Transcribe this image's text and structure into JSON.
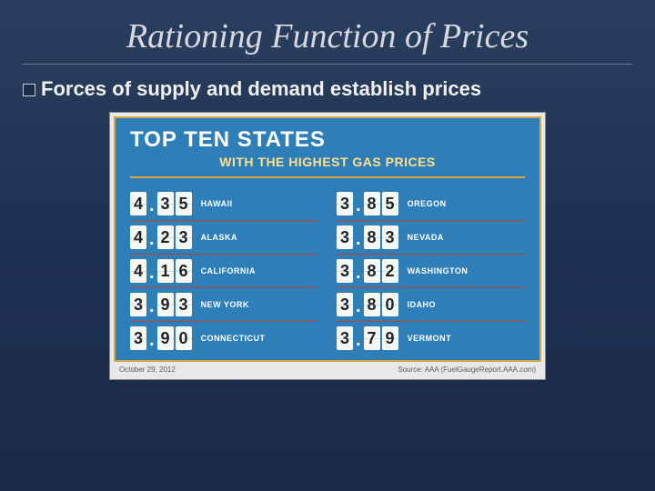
{
  "slide": {
    "title": "Rationing Function of Prices",
    "bullet_text": "Forces of supply and demand establish prices"
  },
  "infographic": {
    "title": "TOP TEN STATES",
    "subtitle": "WITH THE HIGHEST GAS PRICES",
    "title_color": "#ffffff",
    "subtitle_color": "#ffe08a",
    "panel_bg": "#2e7fb8",
    "panel_border": "#d6a843",
    "row_divider_color": "#c04030",
    "digit_bg": "#f7f7f2",
    "digit_text": "#1a2530",
    "left": [
      {
        "price": "4.35",
        "state": "HAWAII"
      },
      {
        "price": "4.23",
        "state": "ALASKA"
      },
      {
        "price": "4.16",
        "state": "CALIFORNIA"
      },
      {
        "price": "3.93",
        "state": "NEW YORK"
      },
      {
        "price": "3.90",
        "state": "CONNECTICUT"
      }
    ],
    "right": [
      {
        "price": "3.85",
        "state": "OREGON"
      },
      {
        "price": "3.83",
        "state": "NEVADA"
      },
      {
        "price": "3.82",
        "state": "WASHINGTON"
      },
      {
        "price": "3.80",
        "state": "IDAHO"
      },
      {
        "price": "3.79",
        "state": "VERMONT"
      }
    ],
    "footer": {
      "date": "October 29, 2012",
      "source": "Source: AAA (FuelGaugeReport.AAA.com)"
    }
  }
}
